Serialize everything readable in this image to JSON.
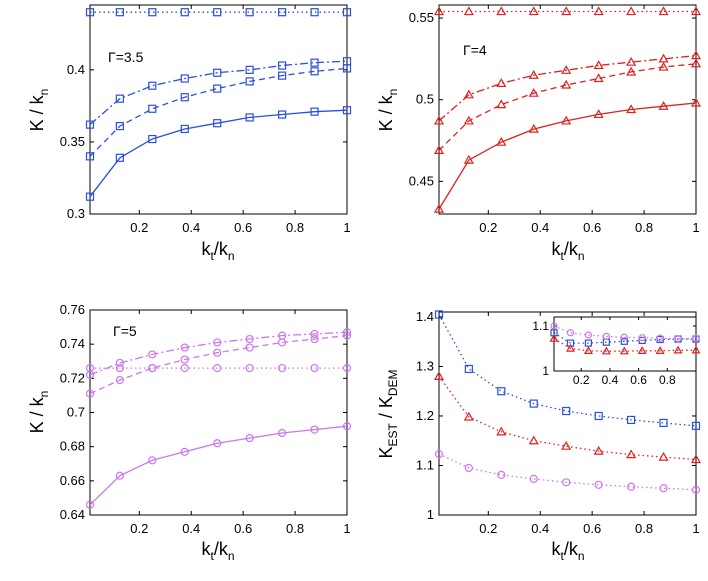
{
  "colors": {
    "blue": "#2b4fe0",
    "red": "#e02020",
    "violet": "#cc77ee"
  },
  "chart_data": [
    {
      "type": "line",
      "id": "p1",
      "annotation": "Γ=3.5",
      "ylabel": "K / k",
      "ylabel_sub": "n",
      "xlabel": "k",
      "xlabel_sub1": "t",
      "xlabel_mid": "/k",
      "xlabel_sub2": "n",
      "xlim": [
        0.01,
        1
      ],
      "ylim": [
        0.3,
        0.445
      ],
      "xticks": [
        0.2,
        0.4,
        0.6,
        0.8,
        1
      ],
      "xtick_labels": [
        "0.2",
        "0.4",
        "0.6",
        "0.8",
        "1"
      ],
      "yticks": [
        0.3,
        0.35,
        0.4
      ],
      "ytick_labels": [
        "0.3",
        "0.35",
        "0.4"
      ],
      "marker": "square",
      "color": "#2b4fe0",
      "series": [
        {
          "name": "dotted",
          "dash": "dotted",
          "x": [
            0.01,
            0.125,
            0.25,
            0.375,
            0.5,
            0.625,
            0.75,
            0.875,
            1
          ],
          "values": [
            0.44,
            0.44,
            0.44,
            0.44,
            0.44,
            0.44,
            0.44,
            0.44,
            0.44
          ]
        },
        {
          "name": "dashdot",
          "dash": "dashdot",
          "x": [
            0.01,
            0.125,
            0.25,
            0.375,
            0.5,
            0.625,
            0.75,
            0.875,
            1
          ],
          "values": [
            0.362,
            0.38,
            0.389,
            0.394,
            0.398,
            0.4,
            0.403,
            0.405,
            0.406
          ]
        },
        {
          "name": "dashed",
          "dash": "dashed",
          "x": [
            0.01,
            0.125,
            0.25,
            0.375,
            0.5,
            0.625,
            0.75,
            0.875,
            1
          ],
          "values": [
            0.34,
            0.361,
            0.373,
            0.381,
            0.387,
            0.392,
            0.396,
            0.399,
            0.401
          ]
        },
        {
          "name": "solid",
          "dash": "solid",
          "x": [
            0.01,
            0.125,
            0.25,
            0.375,
            0.5,
            0.625,
            0.75,
            0.875,
            1
          ],
          "values": [
            0.312,
            0.339,
            0.352,
            0.359,
            0.363,
            0.367,
            0.369,
            0.371,
            0.372
          ]
        }
      ]
    },
    {
      "type": "line",
      "id": "p2",
      "annotation": "Γ=4",
      "ylabel": "K / k",
      "ylabel_sub": "n",
      "xlabel": "k",
      "xlabel_sub1": "t",
      "xlabel_mid": "/k",
      "xlabel_sub2": "n",
      "xlim": [
        0.01,
        1
      ],
      "ylim": [
        0.43,
        0.558
      ],
      "xticks": [
        0.2,
        0.4,
        0.6,
        0.8,
        1
      ],
      "xtick_labels": [
        "0.2",
        "0.4",
        "0.6",
        "0.8",
        "1"
      ],
      "yticks": [
        0.45,
        0.5,
        0.55
      ],
      "ytick_labels": [
        "0.45",
        "0.5",
        "0.55"
      ],
      "marker": "triangle",
      "color": "#e02020",
      "series": [
        {
          "name": "dotted",
          "dash": "dotted",
          "x": [
            0.01,
            0.125,
            0.25,
            0.375,
            0.5,
            0.625,
            0.75,
            0.875,
            1
          ],
          "values": [
            0.554,
            0.554,
            0.554,
            0.554,
            0.554,
            0.554,
            0.554,
            0.554,
            0.554
          ]
        },
        {
          "name": "dashdot",
          "dash": "dashdot",
          "x": [
            0.01,
            0.125,
            0.25,
            0.375,
            0.5,
            0.625,
            0.75,
            0.875,
            1
          ],
          "values": [
            0.487,
            0.503,
            0.51,
            0.515,
            0.518,
            0.521,
            0.523,
            0.525,
            0.527
          ]
        },
        {
          "name": "dashed",
          "dash": "dashed",
          "x": [
            0.01,
            0.125,
            0.25,
            0.375,
            0.5,
            0.625,
            0.75,
            0.875,
            1
          ],
          "values": [
            0.469,
            0.487,
            0.497,
            0.504,
            0.509,
            0.513,
            0.517,
            0.52,
            0.522
          ]
        },
        {
          "name": "solid",
          "dash": "solid",
          "x": [
            0.01,
            0.125,
            0.25,
            0.375,
            0.5,
            0.625,
            0.75,
            0.875,
            1
          ],
          "values": [
            0.433,
            0.463,
            0.474,
            0.482,
            0.487,
            0.491,
            0.494,
            0.496,
            0.498
          ]
        }
      ]
    },
    {
      "type": "line",
      "id": "p3",
      "annotation": "Γ=5",
      "ylabel": "K / k",
      "ylabel_sub": "n",
      "xlabel": "k",
      "xlabel_sub1": "t",
      "xlabel_mid": "/k",
      "xlabel_sub2": "n",
      "xlim": [
        0.01,
        1
      ],
      "ylim": [
        0.64,
        0.76
      ],
      "xticks": [
        0.2,
        0.4,
        0.6,
        0.8,
        1
      ],
      "xtick_labels": [
        "0.2",
        "0.4",
        "0.6",
        "0.8",
        "1"
      ],
      "yticks": [
        0.64,
        0.66,
        0.68,
        0.7,
        0.72,
        0.74,
        0.76
      ],
      "ytick_labels": [
        "0.64",
        "0.66",
        "0.68",
        "0.7",
        "0.72",
        "0.74",
        "0.76"
      ],
      "marker": "circle",
      "color": "#cc77ee",
      "series": [
        {
          "name": "dotted",
          "dash": "dotted",
          "x": [
            0.01,
            0.125,
            0.25,
            0.375,
            0.5,
            0.625,
            0.75,
            0.875,
            1
          ],
          "values": [
            0.726,
            0.726,
            0.726,
            0.726,
            0.726,
            0.726,
            0.726,
            0.726,
            0.726
          ]
        },
        {
          "name": "dashdot",
          "dash": "dashdot",
          "x": [
            0.01,
            0.125,
            0.25,
            0.375,
            0.5,
            0.625,
            0.75,
            0.875,
            1
          ],
          "values": [
            0.722,
            0.729,
            0.734,
            0.738,
            0.741,
            0.743,
            0.745,
            0.746,
            0.747
          ]
        },
        {
          "name": "dashed",
          "dash": "dashed",
          "x": [
            0.01,
            0.125,
            0.25,
            0.375,
            0.5,
            0.625,
            0.75,
            0.875,
            1
          ],
          "values": [
            0.711,
            0.719,
            0.726,
            0.731,
            0.735,
            0.738,
            0.741,
            0.743,
            0.745
          ]
        },
        {
          "name": "solid",
          "dash": "solid",
          "x": [
            0.01,
            0.125,
            0.25,
            0.375,
            0.5,
            0.625,
            0.75,
            0.875,
            1
          ],
          "values": [
            0.646,
            0.663,
            0.672,
            0.677,
            0.682,
            0.685,
            0.688,
            0.69,
            0.692
          ]
        }
      ]
    },
    {
      "type": "line",
      "id": "p4",
      "ylabel": "K",
      "ylabel_sub": "EST",
      "ylabel_mid": " / K",
      "ylabel_sub2": "DEM",
      "xlabel": "k",
      "xlabel_sub1": "t",
      "xlabel_mid": "/k",
      "xlabel_sub2": "n",
      "xlim": [
        0.01,
        1
      ],
      "ylim": [
        1,
        1.41
      ],
      "xticks": [
        0.2,
        0.4,
        0.6,
        0.8,
        1
      ],
      "xtick_labels": [
        "0.2",
        "0.4",
        "0.6",
        "0.8",
        "1"
      ],
      "yticks": [
        1,
        1.1,
        1.2,
        1.3,
        1.4
      ],
      "ytick_labels": [
        "1",
        "1.1",
        "1.2",
        "1.3",
        "1.4"
      ],
      "series": [
        {
          "name": "blue-squares",
          "dash": "dotted",
          "marker": "square",
          "color": "#2b4fe0",
          "x": [
            0.01,
            0.125,
            0.25,
            0.375,
            0.5,
            0.625,
            0.75,
            0.875,
            1
          ],
          "values": [
            1.405,
            1.295,
            1.25,
            1.225,
            1.21,
            1.2,
            1.192,
            1.186,
            1.18
          ]
        },
        {
          "name": "red-triangles",
          "dash": "dotted",
          "marker": "triangle",
          "color": "#e02020",
          "x": [
            0.01,
            0.125,
            0.25,
            0.375,
            0.5,
            0.625,
            0.75,
            0.875,
            1
          ],
          "values": [
            1.28,
            1.198,
            1.168,
            1.15,
            1.139,
            1.129,
            1.122,
            1.117,
            1.112
          ]
        },
        {
          "name": "violet-circles",
          "dash": "dotted",
          "marker": "circle",
          "color": "#cc77ee",
          "x": [
            0.01,
            0.125,
            0.25,
            0.375,
            0.5,
            0.625,
            0.75,
            0.875,
            1
          ],
          "values": [
            1.123,
            1.095,
            1.081,
            1.073,
            1.066,
            1.061,
            1.057,
            1.054,
            1.051
          ]
        }
      ],
      "inset": {
        "xlim": [
          0.01,
          1
        ],
        "ylim": [
          1,
          1.12
        ],
        "xticks": [
          0.2,
          0.4,
          0.6,
          0.8
        ],
        "xtick_labels": [
          "0.2",
          "0.4",
          "0.6",
          "0.8"
        ],
        "yticks": [
          1,
          1.1
        ],
        "ytick_labels": [
          "1",
          "1.1"
        ],
        "series": [
          {
            "name": "inset-blue",
            "dash": "dotted",
            "marker": "square",
            "color": "#2b4fe0",
            "x": [
              0.01,
              0.125,
              0.25,
              0.375,
              0.5,
              0.625,
              0.75,
              0.875,
              1
            ],
            "values": [
              1.085,
              1.062,
              1.062,
              1.064,
              1.066,
              1.068,
              1.07,
              1.071,
              1.071
            ]
          },
          {
            "name": "inset-red",
            "dash": "dotted",
            "marker": "triangle",
            "color": "#e02020",
            "x": [
              0.01,
              0.125,
              0.25,
              0.375,
              0.5,
              0.625,
              0.75,
              0.875,
              1
            ],
            "values": [
              1.072,
              1.05,
              1.045,
              1.044,
              1.044,
              1.045,
              1.045,
              1.046,
              1.046
            ]
          },
          {
            "name": "inset-violet",
            "dash": "dotted",
            "marker": "circle",
            "color": "#cc77ee",
            "x": [
              0.01,
              0.125,
              0.25,
              0.375,
              0.5,
              0.625,
              0.75,
              0.875,
              1
            ],
            "values": [
              1.1,
              1.085,
              1.08,
              1.077,
              1.075,
              1.074,
              1.073,
              1.072,
              1.072
            ]
          }
        ]
      }
    }
  ]
}
